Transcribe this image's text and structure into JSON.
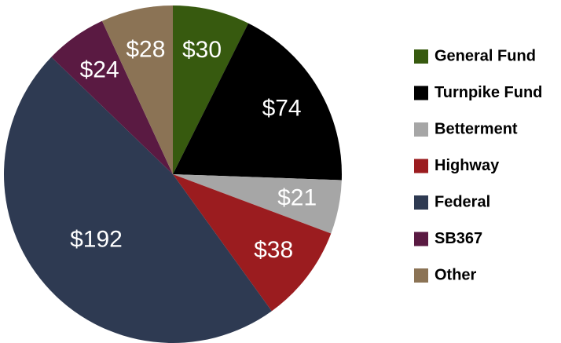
{
  "chart_data": {
    "type": "pie",
    "categories": [
      "General Fund",
      "Turnpike Fund",
      "Betterment",
      "Highway",
      "Federal",
      "SB367",
      "Other"
    ],
    "values": [
      30,
      74,
      21,
      38,
      192,
      24,
      28
    ],
    "value_labels": [
      "$30",
      "$74",
      "$21",
      "$38",
      "$192",
      "$24",
      "$28"
    ],
    "colors": [
      "#375a0f",
      "#000000",
      "#a6a6a6",
      "#9b1c1f",
      "#2e3a52",
      "#5a1a42",
      "#8b7355"
    ],
    "legend": "right"
  }
}
